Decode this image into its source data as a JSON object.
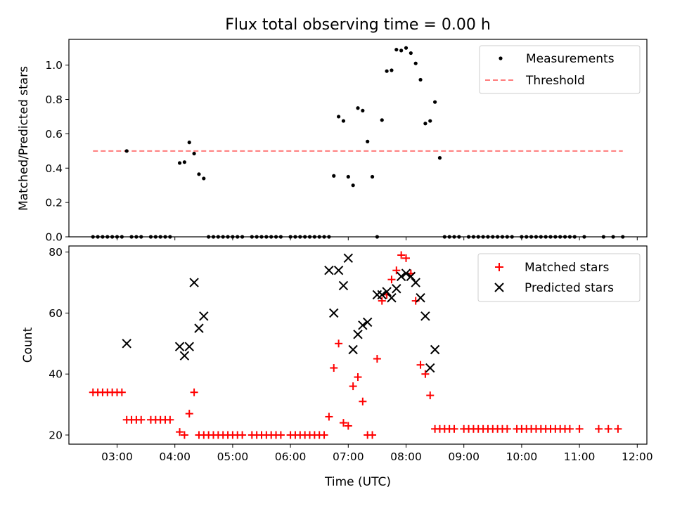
{
  "chart_data": [
    {
      "type": "scatter",
      "title": "Flux total observing time = 0.00 h",
      "ylabel": "Matched/Predicted stars",
      "xlabel": "",
      "xlim": [
        "02:10",
        "12:10"
      ],
      "ylim": [
        0,
        1.15
      ],
      "yticks": [
        "0.0",
        "0.2",
        "0.4",
        "0.6",
        "0.8",
        "1.0"
      ],
      "ytick_values": [
        0,
        0.2,
        0.4,
        0.6,
        0.8,
        1.0
      ],
      "legend_position": "top-right",
      "threshold": {
        "name": "Threshold",
        "value": 0.5,
        "x_start": "02:35",
        "x_end": "11:45",
        "color": "#ff7b7b",
        "style": "dashed"
      },
      "series": [
        {
          "name": "Measurements",
          "color": "#000000",
          "marker": "dot",
          "points": [
            [
              "02:35",
              0
            ],
            [
              "02:40",
              0
            ],
            [
              "02:45",
              0
            ],
            [
              "02:50",
              0
            ],
            [
              "02:55",
              0
            ],
            [
              "03:00",
              0
            ],
            [
              "03:05",
              0
            ],
            [
              "03:10",
              0.5
            ],
            [
              "03:15",
              0
            ],
            [
              "03:20",
              0
            ],
            [
              "03:25",
              0
            ],
            [
              "03:35",
              0
            ],
            [
              "03:40",
              0
            ],
            [
              "03:45",
              0
            ],
            [
              "03:50",
              0
            ],
            [
              "03:55",
              0
            ],
            [
              "04:05",
              0.43
            ],
            [
              "04:10",
              0.435
            ],
            [
              "04:15",
              0.55
            ],
            [
              "04:20",
              0.485
            ],
            [
              "04:25",
              0.365
            ],
            [
              "04:30",
              0.34
            ],
            [
              "04:35",
              0
            ],
            [
              "04:40",
              0
            ],
            [
              "04:45",
              0
            ],
            [
              "04:50",
              0
            ],
            [
              "04:55",
              0
            ],
            [
              "05:00",
              0
            ],
            [
              "05:05",
              0
            ],
            [
              "05:10",
              0
            ],
            [
              "05:20",
              0
            ],
            [
              "05:25",
              0
            ],
            [
              "05:30",
              0
            ],
            [
              "05:35",
              0
            ],
            [
              "05:40",
              0
            ],
            [
              "05:45",
              0
            ],
            [
              "05:50",
              0
            ],
            [
              "06:00",
              0
            ],
            [
              "06:05",
              0
            ],
            [
              "06:10",
              0
            ],
            [
              "06:15",
              0
            ],
            [
              "06:20",
              0
            ],
            [
              "06:25",
              0
            ],
            [
              "06:30",
              0
            ],
            [
              "06:35",
              0
            ],
            [
              "06:40",
              0
            ],
            [
              "06:45",
              0.355
            ],
            [
              "06:50",
              0.7
            ],
            [
              "06:55",
              0.675
            ],
            [
              "07:00",
              0.35
            ],
            [
              "07:05",
              0.3
            ],
            [
              "07:10",
              0.75
            ],
            [
              "07:15",
              0.735
            ],
            [
              "07:20",
              0.555
            ],
            [
              "07:25",
              0.35
            ],
            [
              "07:30",
              0
            ],
            [
              "07:35",
              0.68
            ],
            [
              "07:40",
              0.965
            ],
            [
              "07:45",
              0.97
            ],
            [
              "07:50",
              1.09
            ],
            [
              "07:55",
              1.085
            ],
            [
              "08:00",
              1.1
            ],
            [
              "08:05",
              1.07
            ],
            [
              "08:10",
              1.01
            ],
            [
              "08:15",
              0.915
            ],
            [
              "08:20",
              0.66
            ],
            [
              "08:25",
              0.675
            ],
            [
              "08:30",
              0.785
            ],
            [
              "08:35",
              0.46
            ],
            [
              "08:40",
              0
            ],
            [
              "08:45",
              0
            ],
            [
              "08:50",
              0
            ],
            [
              "08:55",
              0
            ],
            [
              "09:05",
              0
            ],
            [
              "09:10",
              0
            ],
            [
              "09:15",
              0
            ],
            [
              "09:20",
              0
            ],
            [
              "09:25",
              0
            ],
            [
              "09:30",
              0
            ],
            [
              "09:35",
              0
            ],
            [
              "09:40",
              0
            ],
            [
              "09:45",
              0
            ],
            [
              "09:50",
              0
            ],
            [
              "10:00",
              0
            ],
            [
              "10:05",
              0
            ],
            [
              "10:10",
              0
            ],
            [
              "10:15",
              0
            ],
            [
              "10:20",
              0
            ],
            [
              "10:25",
              0
            ],
            [
              "10:30",
              0
            ],
            [
              "10:35",
              0
            ],
            [
              "10:40",
              0
            ],
            [
              "10:45",
              0
            ],
            [
              "10:50",
              0
            ],
            [
              "10:55",
              0
            ],
            [
              "11:05",
              0
            ],
            [
              "11:25",
              0
            ],
            [
              "11:35",
              0
            ],
            [
              "11:45",
              0
            ]
          ]
        }
      ]
    },
    {
      "type": "scatter",
      "title": "",
      "ylabel": "Count",
      "xlabel": "Time (UTC)",
      "xlim": [
        "02:10",
        "12:10"
      ],
      "ylim": [
        17,
        82
      ],
      "yticks": [
        "20",
        "40",
        "60",
        "80"
      ],
      "ytick_values": [
        20,
        40,
        60,
        80
      ],
      "xticks": [
        "03:00",
        "04:00",
        "05:00",
        "06:00",
        "07:00",
        "08:00",
        "09:00",
        "10:00",
        "11:00",
        "12:00"
      ],
      "legend_position": "top-right",
      "series": [
        {
          "name": "Matched stars",
          "color": "#ff0000",
          "marker": "plus",
          "points": [
            [
              "02:35",
              34
            ],
            [
              "02:40",
              34
            ],
            [
              "02:45",
              34
            ],
            [
              "02:50",
              34
            ],
            [
              "02:55",
              34
            ],
            [
              "03:00",
              34
            ],
            [
              "03:05",
              34
            ],
            [
              "03:10",
              25
            ],
            [
              "03:15",
              25
            ],
            [
              "03:20",
              25
            ],
            [
              "03:25",
              25
            ],
            [
              "03:35",
              25
            ],
            [
              "03:40",
              25
            ],
            [
              "03:45",
              25
            ],
            [
              "03:50",
              25
            ],
            [
              "03:55",
              25
            ],
            [
              "04:05",
              21
            ],
            [
              "04:10",
              20
            ],
            [
              "04:15",
              27
            ],
            [
              "04:20",
              34
            ],
            [
              "04:25",
              20
            ],
            [
              "04:30",
              20
            ],
            [
              "04:35",
              20
            ],
            [
              "04:40",
              20
            ],
            [
              "04:45",
              20
            ],
            [
              "04:50",
              20
            ],
            [
              "04:55",
              20
            ],
            [
              "05:00",
              20
            ],
            [
              "05:05",
              20
            ],
            [
              "05:10",
              20
            ],
            [
              "05:20",
              20
            ],
            [
              "05:25",
              20
            ],
            [
              "05:30",
              20
            ],
            [
              "05:35",
              20
            ],
            [
              "05:40",
              20
            ],
            [
              "05:45",
              20
            ],
            [
              "05:50",
              20
            ],
            [
              "06:00",
              20
            ],
            [
              "06:05",
              20
            ],
            [
              "06:10",
              20
            ],
            [
              "06:15",
              20
            ],
            [
              "06:20",
              20
            ],
            [
              "06:25",
              20
            ],
            [
              "06:30",
              20
            ],
            [
              "06:35",
              20
            ],
            [
              "06:40",
              26
            ],
            [
              "06:45",
              42
            ],
            [
              "06:50",
              50
            ],
            [
              "06:55",
              24
            ],
            [
              "07:00",
              23
            ],
            [
              "07:05",
              36
            ],
            [
              "07:10",
              39
            ],
            [
              "07:15",
              31
            ],
            [
              "07:20",
              20
            ],
            [
              "07:25",
              20
            ],
            [
              "07:30",
              45
            ],
            [
              "07:35",
              64
            ],
            [
              "07:40",
              66
            ],
            [
              "07:45",
              71
            ],
            [
              "07:50",
              74
            ],
            [
              "07:55",
              79
            ],
            [
              "08:00",
              78
            ],
            [
              "08:05",
              73
            ],
            [
              "08:10",
              64
            ],
            [
              "08:15",
              43
            ],
            [
              "08:20",
              40
            ],
            [
              "08:25",
              33
            ],
            [
              "08:30",
              22
            ],
            [
              "08:35",
              22
            ],
            [
              "08:40",
              22
            ],
            [
              "08:45",
              22
            ],
            [
              "08:50",
              22
            ],
            [
              "09:00",
              22
            ],
            [
              "09:05",
              22
            ],
            [
              "09:10",
              22
            ],
            [
              "09:15",
              22
            ],
            [
              "09:20",
              22
            ],
            [
              "09:25",
              22
            ],
            [
              "09:30",
              22
            ],
            [
              "09:35",
              22
            ],
            [
              "09:40",
              22
            ],
            [
              "09:45",
              22
            ],
            [
              "09:55",
              22
            ],
            [
              "10:00",
              22
            ],
            [
              "10:05",
              22
            ],
            [
              "10:10",
              22
            ],
            [
              "10:15",
              22
            ],
            [
              "10:20",
              22
            ],
            [
              "10:25",
              22
            ],
            [
              "10:30",
              22
            ],
            [
              "10:35",
              22
            ],
            [
              "10:40",
              22
            ],
            [
              "10:45",
              22
            ],
            [
              "10:50",
              22
            ],
            [
              "11:00",
              22
            ],
            [
              "11:20",
              22
            ],
            [
              "11:30",
              22
            ],
            [
              "11:40",
              22
            ]
          ]
        },
        {
          "name": "Predicted stars",
          "color": "#000000",
          "marker": "x",
          "points": [
            [
              "03:10",
              50
            ],
            [
              "04:05",
              49
            ],
            [
              "04:10",
              46
            ],
            [
              "04:15",
              49
            ],
            [
              "04:20",
              70
            ],
            [
              "04:25",
              55
            ],
            [
              "04:30",
              59
            ],
            [
              "06:40",
              74
            ],
            [
              "06:45",
              60
            ],
            [
              "06:50",
              74
            ],
            [
              "06:55",
              69
            ],
            [
              "07:00",
              78
            ],
            [
              "07:05",
              48
            ],
            [
              "07:10",
              53
            ],
            [
              "07:15",
              56
            ],
            [
              "07:20",
              57
            ],
            [
              "07:30",
              66
            ],
            [
              "07:35",
              66
            ],
            [
              "07:40",
              67
            ],
            [
              "07:45",
              65
            ],
            [
              "07:50",
              68
            ],
            [
              "07:55",
              72
            ],
            [
              "08:00",
              73
            ],
            [
              "08:05",
              72
            ],
            [
              "08:10",
              70
            ],
            [
              "08:15",
              65
            ],
            [
              "08:20",
              59
            ],
            [
              "08:25",
              42
            ],
            [
              "08:30",
              48
            ]
          ]
        }
      ]
    }
  ]
}
